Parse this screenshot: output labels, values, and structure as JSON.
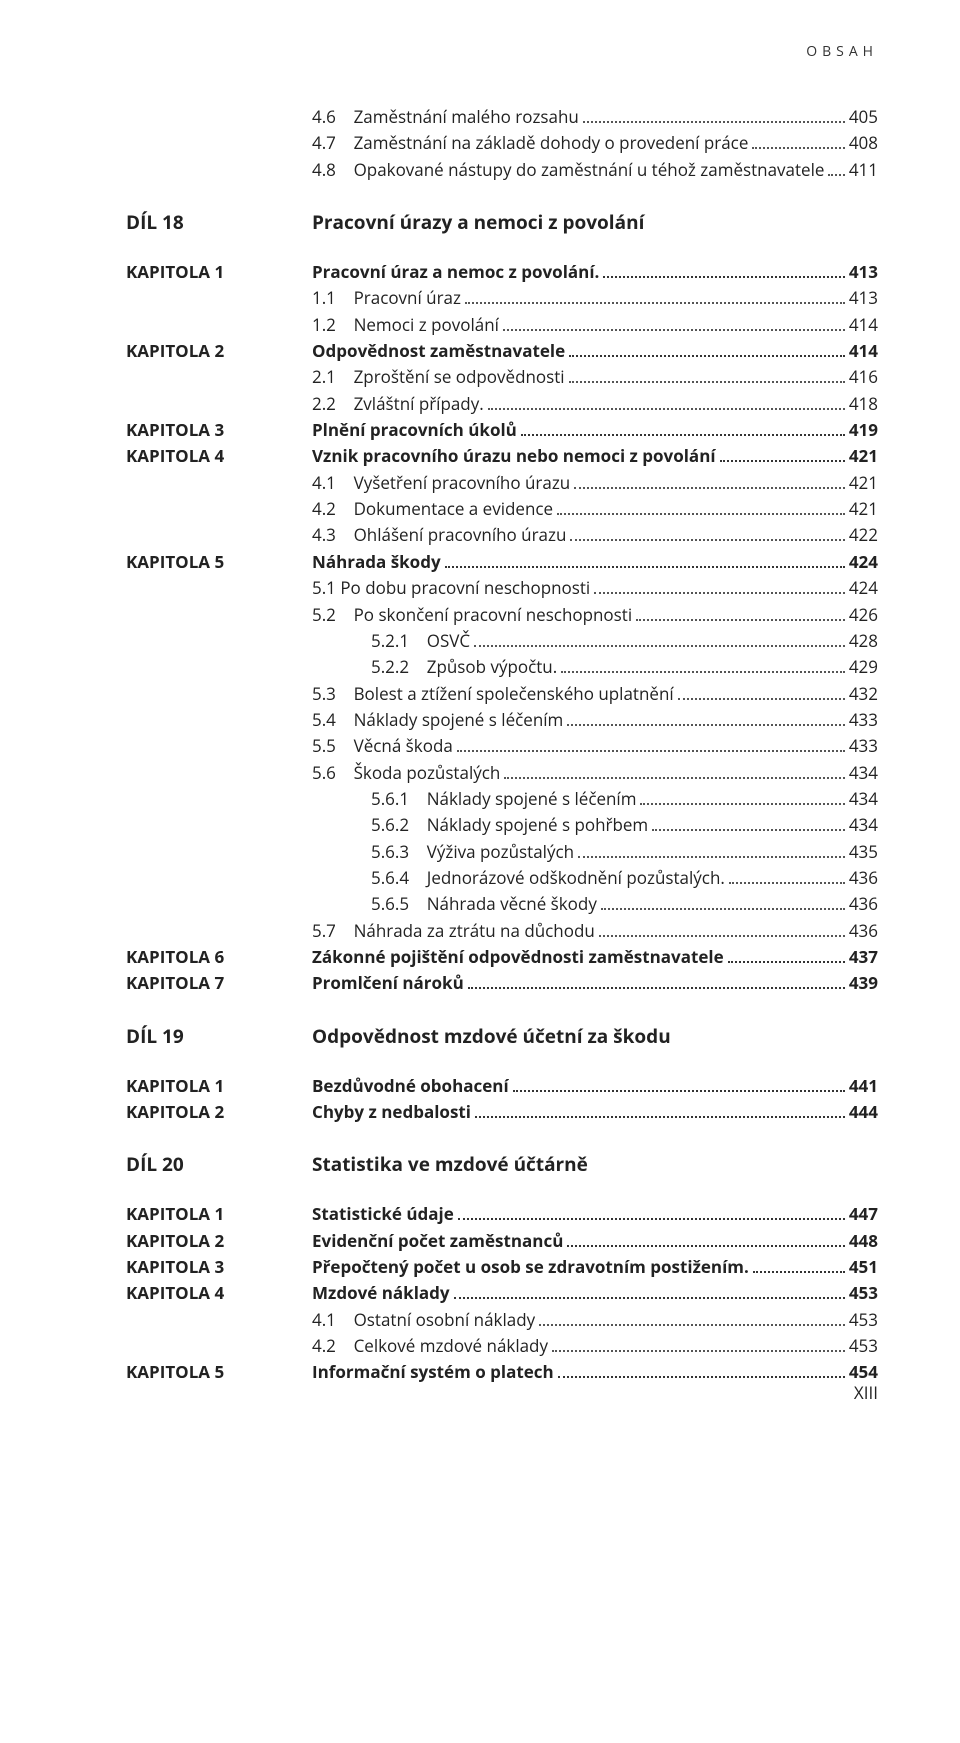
{
  "running_head": "OBSAH",
  "folio": "XIII",
  "colors": {
    "text": "#222222",
    "dots": "#555555",
    "background": "#ffffff"
  },
  "typography": {
    "body_pt": 17,
    "dil_pt": 19,
    "running_head_pt": 14,
    "font_family": "Myriad Pro / Segoe UI / Open Sans / Arial"
  },
  "top_orphans": [
    {
      "num": "4.6",
      "title": "Zaměstnání malého rozsahu",
      "page": "405"
    },
    {
      "num": "4.7",
      "title": "Zaměstnání na základě dohody o provedení práce",
      "page": "408"
    },
    {
      "num": "4.8",
      "title": "Opakované nástupy do zaměstnání u téhož zaměstnavatele",
      "page": "411"
    }
  ],
  "dily": [
    {
      "dil_label": "DÍL 18",
      "dil_title": "Pracovní úrazy a nemoci z povolání",
      "kapitoly": [
        {
          "kap_label": "KAPITOLA 1",
          "title": "Pracovní úraz a nemoc z povolání.",
          "page": "413",
          "rows": [
            {
              "num": "1.1",
              "title": "Pracovní úraz",
              "page": "413"
            },
            {
              "num": "1.2",
              "title": "Nemoci z povolání",
              "page": "414"
            }
          ]
        },
        {
          "kap_label": "KAPITOLA 2",
          "title": "Odpovědnost zaměstnavatele",
          "page": "414",
          "rows": [
            {
              "num": "2.1",
              "title": "Zproštění se odpovědnosti",
              "page": "416"
            },
            {
              "num": "2.2",
              "title": "Zvláštní případy.",
              "page": "418"
            }
          ]
        },
        {
          "kap_label": "KAPITOLA 3",
          "title": "Plnění pracovních úkolů",
          "page": "419",
          "rows": []
        },
        {
          "kap_label": "KAPITOLA 4",
          "title": "Vznik pracovního úrazu nebo nemoci z povolání",
          "page": "421",
          "rows": [
            {
              "num": "4.1",
              "title": "Vyšetření pracovního úrazu",
              "page": "421"
            },
            {
              "num": "4.2",
              "title": "Dokumentace a evidence",
              "page": "421"
            },
            {
              "num": "4.3",
              "title": "Ohlášení pracovního úrazu",
              "page": "422"
            }
          ]
        },
        {
          "kap_label": "KAPITOLA 5",
          "title": "Náhrada škody",
          "page": "424",
          "rows": [
            {
              "num": "5.1",
              "title": "Po dobu pracovní neschopnosti",
              "page": "424",
              "tight": true
            },
            {
              "num": "5.2",
              "title": "Po skončení pracovní neschopnosti",
              "page": "426"
            },
            {
              "num": "5.2.1",
              "title": "OSVČ",
              "page": "428",
              "depth": 2
            },
            {
              "num": "5.2.2",
              "title": "Způsob výpočtu.",
              "page": "429",
              "depth": 2
            },
            {
              "num": "5.3",
              "title": "Bolest a ztížení společenského uplatnění",
              "page": "432"
            },
            {
              "num": "5.4",
              "title": "Náklady spojené s léčením",
              "page": "433"
            },
            {
              "num": "5.5",
              "title": "Věcná škoda",
              "page": "433"
            },
            {
              "num": "5.6",
              "title": "Škoda pozůstalých",
              "page": "434"
            },
            {
              "num": "5.6.1",
              "title": "Náklady spojené s léčením",
              "page": "434",
              "depth": 2
            },
            {
              "num": "5.6.2",
              "title": "Náklady spojené s pohřbem",
              "page": "434",
              "depth": 2
            },
            {
              "num": "5.6.3",
              "title": "Výživa pozůstalých",
              "page": "435",
              "depth": 2
            },
            {
              "num": "5.6.4",
              "title": "Jednorázové odškodnění pozůstalých.",
              "page": "436",
              "depth": 2
            },
            {
              "num": "5.6.5",
              "title": "Náhrada věcné škody",
              "page": "436",
              "depth": 2
            },
            {
              "num": "5.7",
              "title": "Náhrada za ztrátu na důchodu",
              "page": "436"
            }
          ]
        },
        {
          "kap_label": "KAPITOLA 6",
          "title": "Zákonné pojištění odpovědnosti zaměstnavatele",
          "page": "437",
          "rows": []
        },
        {
          "kap_label": "KAPITOLA 7",
          "title": "Promlčení nároků",
          "page": "439",
          "rows": []
        }
      ]
    },
    {
      "dil_label": "DÍL 19",
      "dil_title": "Odpovědnost mzdové účetní za škodu",
      "kapitoly": [
        {
          "kap_label": "KAPITOLA 1",
          "title": "Bezdůvodné obohacení",
          "page": "441",
          "rows": []
        },
        {
          "kap_label": "KAPITOLA 2",
          "title": "Chyby z nedbalosti",
          "page": "444",
          "rows": []
        }
      ]
    },
    {
      "dil_label": "DÍL 20",
      "dil_title": "Statistika ve mzdové účtárně",
      "kapitoly": [
        {
          "kap_label": "KAPITOLA 1",
          "title": "Statistické údaje",
          "page": "447",
          "rows": []
        },
        {
          "kap_label": "KAPITOLA 2",
          "title": "Evidenční počet zaměstnanců",
          "page": "448",
          "rows": []
        },
        {
          "kap_label": "KAPITOLA 3",
          "title": "Přepočtený počet u osob se zdravotním postižením.",
          "page": "451",
          "rows": []
        },
        {
          "kap_label": "KAPITOLA 4",
          "title": "Mzdové náklady",
          "page": "453",
          "rows": [
            {
              "num": "4.1",
              "title": "Ostatní osobní náklady",
              "page": "453"
            },
            {
              "num": "4.2",
              "title": "Celkové mzdové náklady",
              "page": "453"
            }
          ]
        },
        {
          "kap_label": "KAPITOLA 5",
          "title": "Informační systém o platech",
          "page": "454",
          "rows": []
        }
      ]
    }
  ]
}
